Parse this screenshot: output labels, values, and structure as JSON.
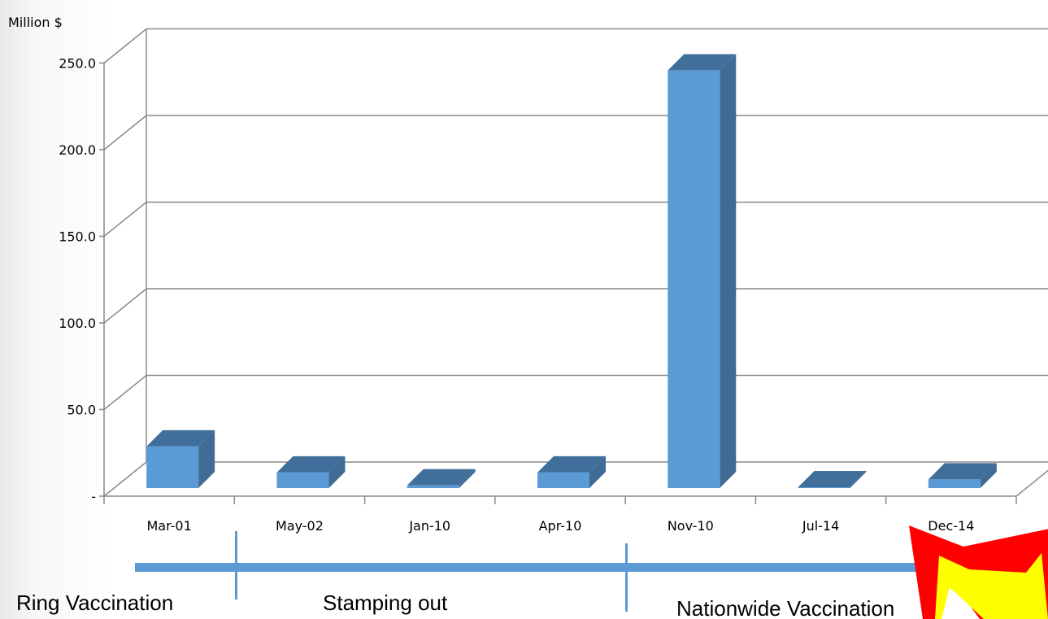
{
  "chart_data": {
    "type": "bar",
    "ylabel": "Million $",
    "ylim": [
      0,
      250
    ],
    "y_ticks": [
      {
        "value": 0,
        "label": "-"
      },
      {
        "value": 50,
        "label": "50.0"
      },
      {
        "value": 100,
        "label": "100.0"
      },
      {
        "value": 150,
        "label": "150.0"
      },
      {
        "value": 200,
        "label": "200.0"
      },
      {
        "value": 250,
        "label": "250.0"
      }
    ],
    "categories": [
      "Mar-01",
      "May-02",
      "Jan-10",
      "Apr-10",
      "Nov-10",
      "Jul-14",
      "Dec-14"
    ],
    "values": [
      24,
      9,
      1.5,
      9,
      241,
      0.3,
      5
    ],
    "bar_color": "#5b9bd5",
    "bar_side_color": "#3f6b94",
    "bar_top_color": "#416f9b",
    "grid": true,
    "style": "3d-column"
  },
  "timeline": {
    "color": "#5b9bd5",
    "periods": [
      "Ring Vaccination",
      "Stamping out",
      "Nationwide Vaccination"
    ]
  },
  "burst": {
    "fill": "#ffff00",
    "stroke": "#ff0000"
  }
}
